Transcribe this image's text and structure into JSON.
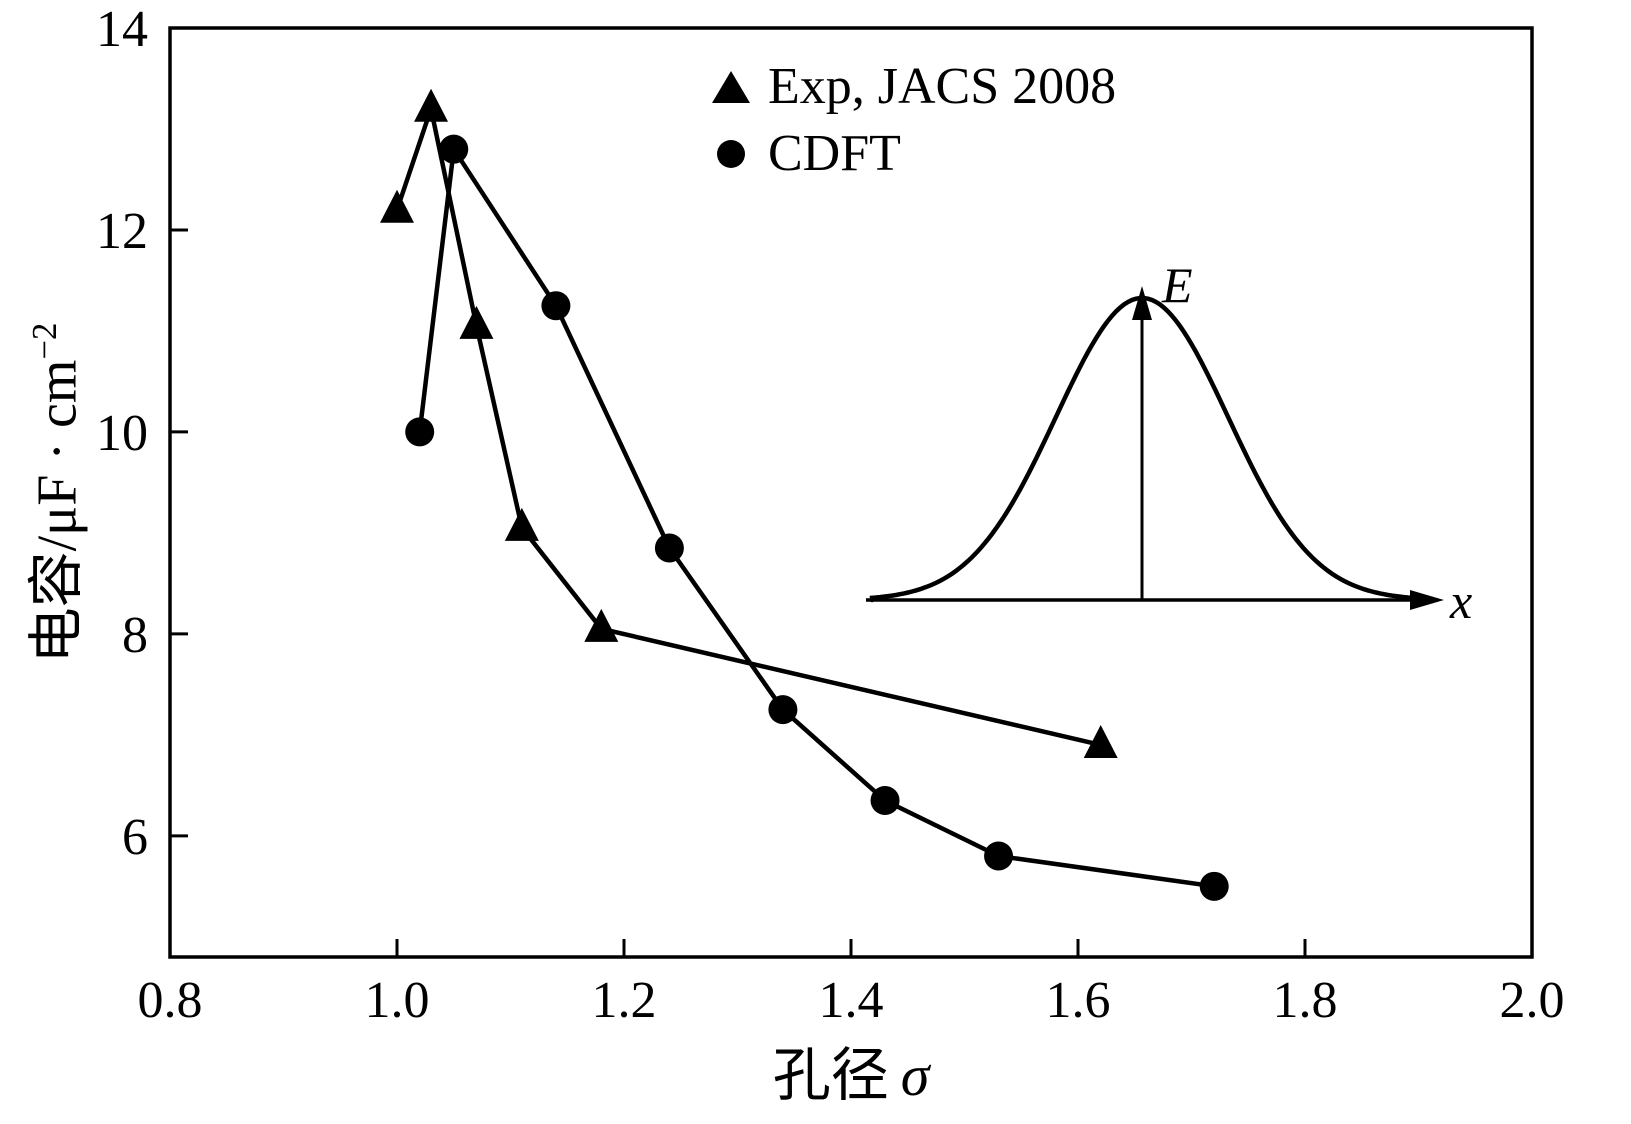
{
  "figure": {
    "background": "#ffffff",
    "ink": "#000000"
  },
  "chart_data": {
    "type": "line",
    "title": "",
    "xlabel": "孔径σ",
    "ylabel": "电容/μF·cm⁻²",
    "xlim": [
      0.8,
      2.0
    ],
    "ylim": [
      4.8,
      14
    ],
    "grid": false,
    "legend_position": "top-center-inside",
    "xticks": [
      0.8,
      1.0,
      1.2,
      1.4,
      1.6,
      1.8,
      2.0
    ],
    "xtick_labels": [
      "0.8",
      "1.0",
      "1.2",
      "1.4",
      "1.6",
      "1.8",
      "2.0"
    ],
    "yticks": [
      6,
      8,
      10,
      12,
      14
    ],
    "ytick_labels": [
      "6",
      "8",
      "10",
      "12",
      "14"
    ],
    "series": [
      {
        "name": "Exp, JACS 2008",
        "marker": "triangle",
        "color": "#000000",
        "points": [
          [
            1.0,
            12.2
          ],
          [
            1.03,
            13.2
          ],
          [
            1.07,
            11.05
          ],
          [
            1.11,
            9.05
          ],
          [
            1.18,
            8.05
          ],
          [
            1.62,
            6.9
          ]
        ]
      },
      {
        "name": "CDFT",
        "marker": "circle",
        "color": "#000000",
        "points": [
          [
            1.02,
            10.0
          ],
          [
            1.05,
            12.8
          ],
          [
            1.14,
            11.25
          ],
          [
            1.24,
            8.85
          ],
          [
            1.34,
            7.25
          ],
          [
            1.43,
            6.35
          ],
          [
            1.53,
            5.8
          ],
          [
            1.72,
            5.5
          ]
        ]
      }
    ],
    "inset": {
      "type": "gaussian-curve",
      "x_axis_label": "x",
      "y_axis_label": "E"
    }
  },
  "labels": {
    "ylabel_main": "电容/μF · cm",
    "ylabel_sup": "−2",
    "xlabel_main": "孔径",
    "xlabel_symbol": "σ"
  }
}
